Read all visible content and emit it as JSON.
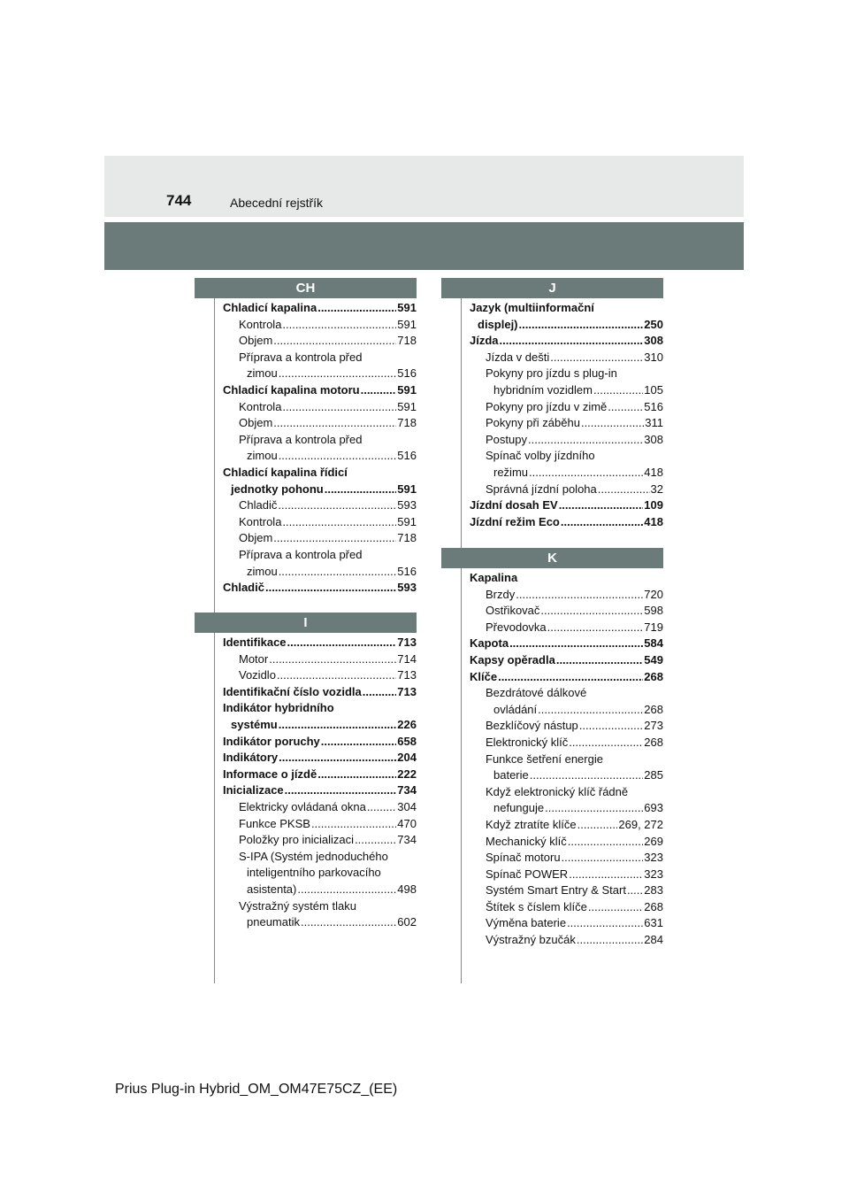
{
  "header": {
    "page_number": "744",
    "title": "Abecední rejstřík"
  },
  "footer": "Prius Plug-in Hybrid_OM_OM47E75CZ_(EE)",
  "columns": [
    {
      "sections": [
        {
          "letter": "CH",
          "lines": [
            {
              "text": "Chladicí kapalina",
              "page": "591",
              "bold": true,
              "indent": 0
            },
            {
              "text": "Kontrola",
              "page": "591",
              "indent": 2
            },
            {
              "text": "Objem",
              "page": "718",
              "indent": 2
            },
            {
              "text": "Příprava a kontrola před",
              "indent": 2
            },
            {
              "text": "zimou",
              "page": "516",
              "indent": 3
            },
            {
              "text": "Chladicí kapalina motoru",
              "page": "591",
              "bold": true,
              "indent": 0
            },
            {
              "text": "Kontrola",
              "page": "591",
              "indent": 2
            },
            {
              "text": "Objem",
              "page": "718",
              "indent": 2
            },
            {
              "text": "Příprava a kontrola před",
              "indent": 2
            },
            {
              "text": "zimou",
              "page": "516",
              "indent": 3
            },
            {
              "text": "Chladicí kapalina řídicí",
              "bold": true,
              "indent": 0
            },
            {
              "text": "jednotky pohonu",
              "page": "591",
              "bold": true,
              "indent": 1
            },
            {
              "text": "Chladič",
              "page": "593",
              "indent": 2
            },
            {
              "text": "Kontrola",
              "page": "591",
              "indent": 2
            },
            {
              "text": "Objem",
              "page": "718",
              "indent": 2
            },
            {
              "text": "Příprava a kontrola před",
              "indent": 2
            },
            {
              "text": "zimou",
              "page": "516",
              "indent": 3
            },
            {
              "text": "Chladič",
              "page": "593",
              "bold": true,
              "indent": 0
            }
          ]
        },
        {
          "letter": "I",
          "lines": [
            {
              "text": "Identifikace",
              "page": "713",
              "bold": true,
              "indent": 0
            },
            {
              "text": "Motor",
              "page": "714",
              "indent": 2
            },
            {
              "text": "Vozidlo",
              "page": "713",
              "indent": 2
            },
            {
              "text": "Identifikační číslo vozidla",
              "page": "713",
              "bold": true,
              "indent": 0
            },
            {
              "text": "Indikátor hybridního",
              "bold": true,
              "indent": 0
            },
            {
              "text": "systému",
              "page": "226",
              "bold": true,
              "indent": 1
            },
            {
              "text": "Indikátor poruchy",
              "page": "658",
              "bold": true,
              "indent": 0
            },
            {
              "text": "Indikátory",
              "page": "204",
              "bold": true,
              "indent": 0
            },
            {
              "text": "Informace o jízdě",
              "page": "222",
              "bold": true,
              "indent": 0
            },
            {
              "text": "Inicializace",
              "page": "734",
              "bold": true,
              "indent": 0
            },
            {
              "text": "Elektricky ovládaná okna",
              "page": "304",
              "indent": 2
            },
            {
              "text": "Funkce PKSB",
              "page": "470",
              "indent": 2
            },
            {
              "text": "Položky pro inicializaci",
              "page": "734",
              "indent": 2
            },
            {
              "text": "S-IPA (Systém jednoduchého",
              "indent": 2
            },
            {
              "text": "inteligentního parkovacího",
              "indent": 3
            },
            {
              "text": "asistenta)",
              "page": "498",
              "indent": 3
            },
            {
              "text": "Výstražný systém tlaku",
              "indent": 2
            },
            {
              "text": "pneumatik",
              "page": "602",
              "indent": 3
            }
          ]
        }
      ]
    },
    {
      "sections": [
        {
          "letter": "J",
          "lines": [
            {
              "text": "Jazyk (multiinformační",
              "bold": true,
              "indent": 0
            },
            {
              "text": "displej)",
              "page": "250",
              "bold": true,
              "indent": 1
            },
            {
              "text": "Jízda",
              "page": "308",
              "bold": true,
              "indent": 0
            },
            {
              "text": "Jízda v dešti",
              "page": "310",
              "indent": 2
            },
            {
              "text": "Pokyny pro jízdu s plug-in",
              "indent": 2
            },
            {
              "text": "hybridním vozidlem",
              "page": "105",
              "indent": 3
            },
            {
              "text": "Pokyny pro jízdu v zimě",
              "page": "516",
              "indent": 2
            },
            {
              "text": "Pokyny při záběhu",
              "page": "311",
              "indent": 2
            },
            {
              "text": "Postupy",
              "page": "308",
              "indent": 2
            },
            {
              "text": "Spínač volby jízdního",
              "indent": 2
            },
            {
              "text": "režimu",
              "page": "418",
              "indent": 3
            },
            {
              "text": "Správná jízdní poloha",
              "page": "32",
              "indent": 2
            },
            {
              "text": "Jízdní dosah EV",
              "page": "109",
              "bold": true,
              "indent": 0
            },
            {
              "text": "Jízdní režim Eco",
              "page": "418",
              "bold": true,
              "indent": 0
            }
          ]
        },
        {
          "letter": "K",
          "lines": [
            {
              "text": "Kapalina",
              "bold": true,
              "indent": 0
            },
            {
              "text": "Brzdy",
              "page": "720",
              "indent": 2
            },
            {
              "text": "Ostřikovač",
              "page": "598",
              "indent": 2
            },
            {
              "text": "Převodovka",
              "page": "719",
              "indent": 2
            },
            {
              "text": "Kapota",
              "page": "584",
              "bold": true,
              "indent": 0
            },
            {
              "text": "Kapsy opěradla",
              "page": "549",
              "bold": true,
              "indent": 0
            },
            {
              "text": "Klíče",
              "page": "268",
              "bold": true,
              "indent": 0
            },
            {
              "text": "Bezdrátové dálkové",
              "indent": 2
            },
            {
              "text": "ovládání",
              "page": "268",
              "indent": 3
            },
            {
              "text": "Bezklíčový nástup",
              "page": "273",
              "indent": 2
            },
            {
              "text": "Elektronický klíč",
              "page": "268",
              "indent": 2
            },
            {
              "text": "Funkce šetření energie",
              "indent": 2
            },
            {
              "text": "baterie",
              "page": "285",
              "indent": 3
            },
            {
              "text": "Když elektronický klíč řádně",
              "indent": 2
            },
            {
              "text": "nefunguje",
              "page": "693",
              "indent": 3
            },
            {
              "text": "Když ztratíte klíče",
              "page": "269, 272",
              "indent": 2
            },
            {
              "text": "Mechanický klíč",
              "page": "269",
              "indent": 2
            },
            {
              "text": "Spínač motoru",
              "page": "323",
              "indent": 2
            },
            {
              "text": "Spínač POWER",
              "page": "323",
              "indent": 2
            },
            {
              "text": "Systém Smart Entry & Start",
              "page": "283",
              "indent": 2
            },
            {
              "text": "Štítek s číslem klíče",
              "page": "268",
              "indent": 2
            },
            {
              "text": "Výměna baterie",
              "page": "631",
              "indent": 2
            },
            {
              "text": "Výstražný bzučák",
              "page": "284",
              "indent": 2
            }
          ]
        }
      ]
    }
  ]
}
